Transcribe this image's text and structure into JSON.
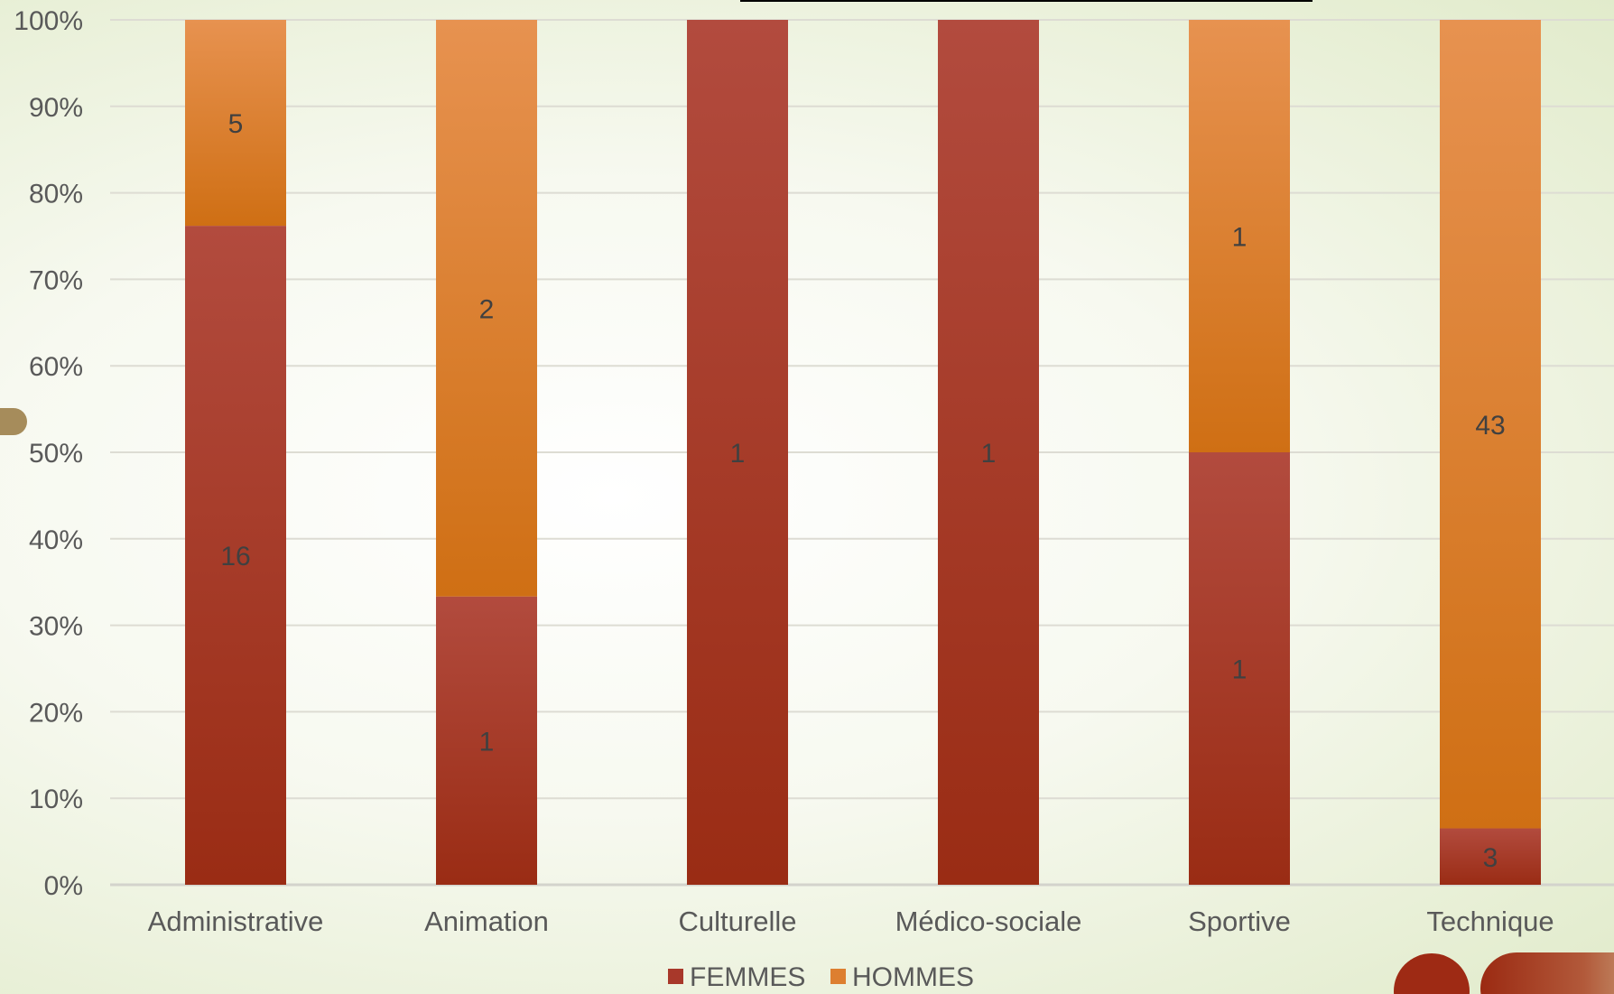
{
  "chart_data": {
    "type": "bar",
    "stacked": "percent",
    "categories": [
      "Administrative",
      "Animation",
      "Culturelle",
      "Médico-sociale",
      "Sportive",
      "Technique"
    ],
    "series": [
      {
        "name": "FEMMES",
        "values": [
          16,
          1,
          1,
          1,
          1,
          3
        ],
        "color": "#a8382a"
      },
      {
        "name": "HOMMES",
        "values": [
          5,
          2,
          0,
          0,
          1,
          43
        ],
        "color": "#dd7f30"
      }
    ],
    "ylim": [
      0,
      100
    ],
    "y_ticks": [
      "0%",
      "10%",
      "20%",
      "30%",
      "40%",
      "50%",
      "60%",
      "70%",
      "80%",
      "90%",
      "100%"
    ],
    "grid": true,
    "legend": "bottom"
  }
}
